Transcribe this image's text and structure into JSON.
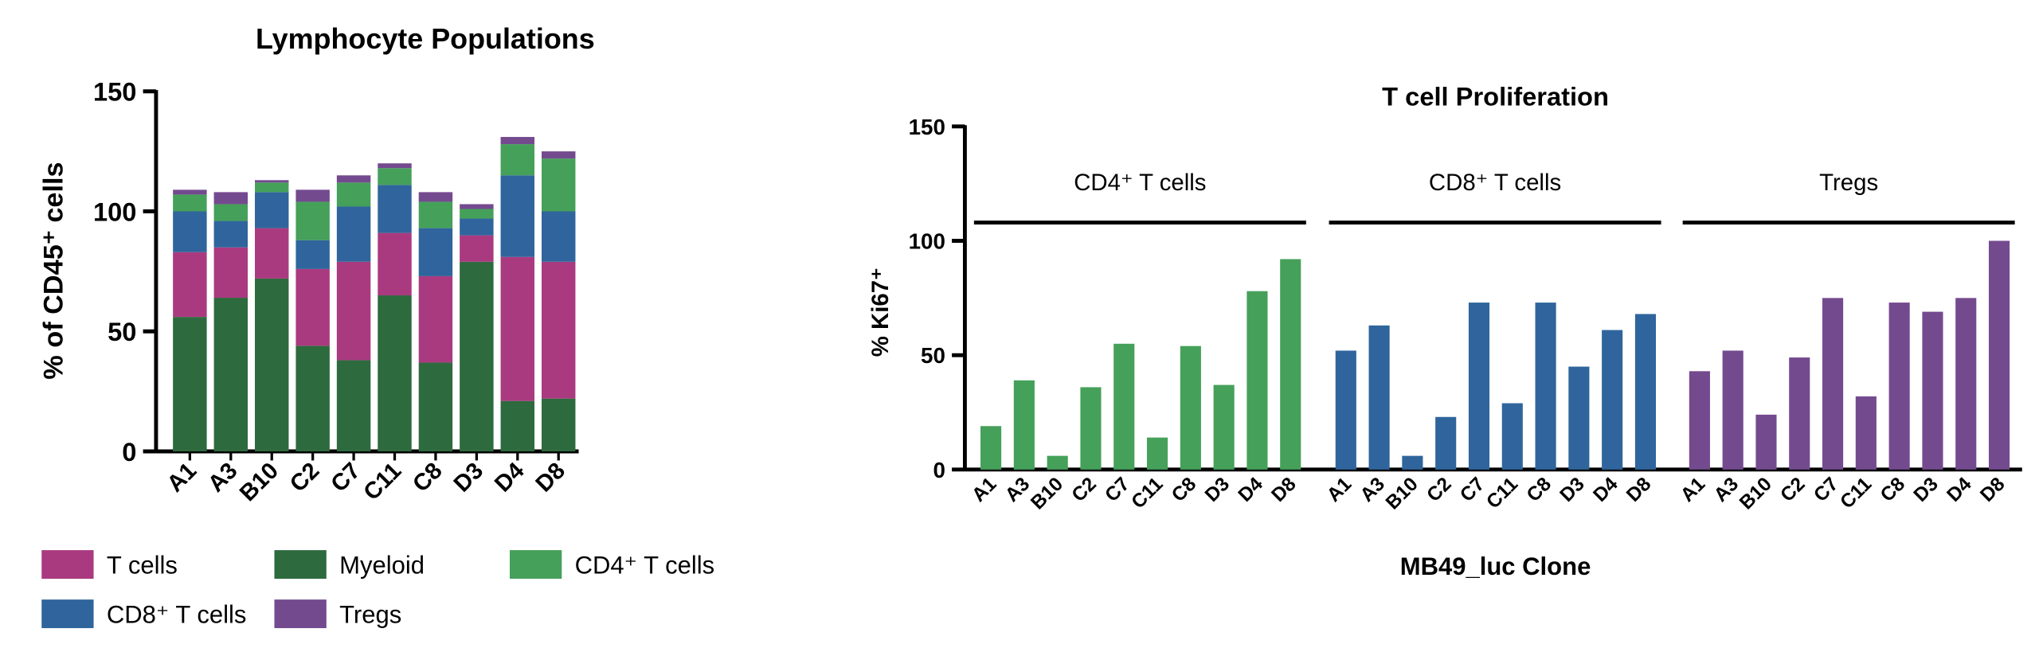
{
  "colors": {
    "T cells": "#aa3a7f",
    "Myeloid": "#2d6a3e",
    "CD4+ T cells": "#45a05a",
    "CD8+ T cells": "#2f659c",
    "Tregs": "#744a8f"
  },
  "chart_data": [
    {
      "type": "bar",
      "stacked": true,
      "title": "Lymphocyte Populations",
      "xlabel": "",
      "ylabel": "% of CD45+ cells",
      "ylim": [
        0,
        150
      ],
      "yticks": [
        "0",
        "50",
        "100",
        "150"
      ],
      "categories": [
        "A1",
        "A3",
        "B10",
        "C2",
        "C7",
        "C11",
        "C8",
        "D3",
        "D4",
        "D8"
      ],
      "series": [
        {
          "name": "Myeloid",
          "values": [
            56,
            64,
            72,
            44,
            38,
            65,
            37,
            79,
            21,
            22
          ]
        },
        {
          "name": "T cells",
          "values": [
            27,
            21,
            21,
            32,
            41,
            26,
            36,
            11,
            60,
            57
          ]
        },
        {
          "name": "CD8+ T cells",
          "values": [
            17,
            11,
            15,
            12,
            23,
            20,
            20,
            7,
            34,
            21
          ]
        },
        {
          "name": "CD4+ T cells",
          "values": [
            7,
            7,
            4,
            16,
            10,
            7,
            11,
            4,
            13,
            22
          ]
        },
        {
          "name": "Tregs",
          "values": [
            2,
            5,
            1,
            5,
            3,
            2,
            4,
            2,
            3,
            3
          ]
        }
      ],
      "legend": {
        "placement": "bottom",
        "entries": [
          "T cells",
          "Myeloid",
          "CD4+ T cells",
          "CD8+ T cells",
          "Tregs"
        ]
      }
    },
    {
      "type": "bar",
      "title": "T cell Proliferation",
      "xlabel": "MB49_luc Clone",
      "ylabel": "% Ki67+",
      "ylim": [
        0,
        150
      ],
      "yticks": [
        "0",
        "50",
        "100",
        "150"
      ],
      "categories": [
        "A1",
        "A3",
        "B10",
        "C2",
        "C7",
        "C11",
        "C8",
        "D3",
        "D4",
        "D8"
      ],
      "groups": [
        {
          "name": "CD4+ T cells",
          "label": "CD4⁺ T cells",
          "values": [
            19,
            39,
            6,
            36,
            55,
            14,
            54,
            37,
            78,
            92
          ]
        },
        {
          "name": "CD8+ T cells",
          "label": "CD8⁺ T cells",
          "values": [
            52,
            63,
            6,
            23,
            73,
            29,
            73,
            45,
            61,
            68
          ]
        },
        {
          "name": "Tregs",
          "label": "Tregs",
          "values": [
            43,
            52,
            24,
            49,
            75,
            32,
            73,
            69,
            75,
            100
          ]
        }
      ],
      "group_line_level": 108
    }
  ],
  "labels": {
    "left_title": "Lymphocyte Populations",
    "left_ylabel": "% of CD45⁺ cells",
    "right_title": "T cell Proliferation",
    "right_ylabel": "% Ki67⁺",
    "right_xlabel": "MB49_luc Clone",
    "legend": [
      "T cells",
      "Myeloid",
      "CD4⁺ T cells",
      "CD8⁺ T cells",
      "Tregs"
    ]
  }
}
